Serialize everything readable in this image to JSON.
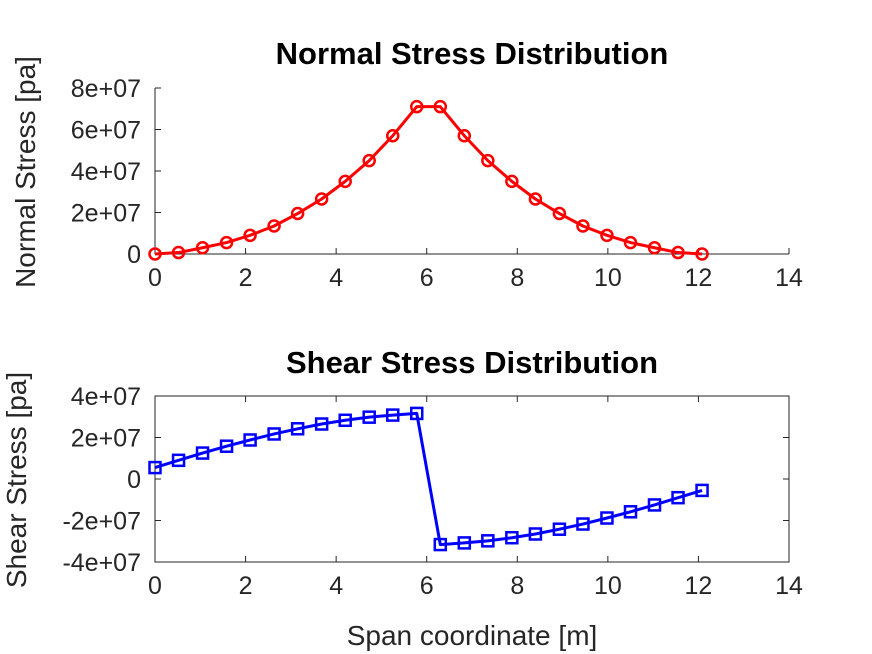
{
  "chart_data": [
    {
      "type": "line",
      "title": "Normal Stress Distribution",
      "xlabel": "",
      "ylabel": "Normal Stress [pa]",
      "xlim": [
        0,
        14
      ],
      "ylim": [
        0,
        80000000
      ],
      "xticks": [
        "0",
        "2",
        "4",
        "6",
        "8",
        "10",
        "12",
        "14"
      ],
      "yticks": [
        "0",
        "2e+07",
        "4e+07",
        "6e+07",
        "8e+07"
      ],
      "grid": false,
      "color": "#ff0000",
      "marker": "circle",
      "series": [
        {
          "x": [
            0,
            0.52,
            1.05,
            1.58,
            2.1,
            2.63,
            3.15,
            3.68,
            4.2,
            4.73,
            5.25,
            5.78,
            6.3,
            6.83,
            7.35,
            7.88,
            8.4,
            8.93,
            9.45,
            9.98,
            10.5,
            11.03,
            11.55,
            12.08
          ],
          "y": [
            0,
            700000,
            3000000,
            5500000,
            9000000,
            13500000,
            19500000,
            26500000,
            35000000,
            45000000,
            57000000,
            71000000,
            71000000,
            57000000,
            45000000,
            35000000,
            26500000,
            19500000,
            13500000,
            9000000,
            5500000,
            3000000,
            700000,
            0
          ]
        }
      ]
    },
    {
      "type": "line",
      "title": "Shear Stress Distribution",
      "xlabel": "Span coordinate [m]",
      "ylabel": "Shear Stress [pa]",
      "xlim": [
        0,
        14
      ],
      "ylim": [
        -40000000,
        40000000
      ],
      "xticks": [
        "0",
        "2",
        "4",
        "6",
        "8",
        "10",
        "12",
        "14"
      ],
      "yticks": [
        "-4e+07",
        "-2e+07",
        "0",
        "2e+07",
        "4e+07"
      ],
      "grid": false,
      "color": "#0000ff",
      "marker": "square",
      "series": [
        {
          "x": [
            0,
            0.52,
            1.05,
            1.58,
            2.1,
            2.63,
            3.15,
            3.68,
            4.2,
            4.73,
            5.25,
            5.78,
            6.3,
            6.83,
            7.35,
            7.88,
            8.4,
            8.93,
            9.45,
            9.98,
            10.5,
            11.03,
            11.55,
            12.08
          ],
          "y": [
            5500000,
            9000000,
            12500000,
            15800000,
            18800000,
            21700000,
            24200000,
            26500000,
            28300000,
            29800000,
            30800000,
            31600000,
            -31600000,
            -30800000,
            -29800000,
            -28300000,
            -26500000,
            -24200000,
            -21700000,
            -18800000,
            -15800000,
            -12500000,
            -9000000,
            -5500000
          ]
        }
      ]
    }
  ]
}
